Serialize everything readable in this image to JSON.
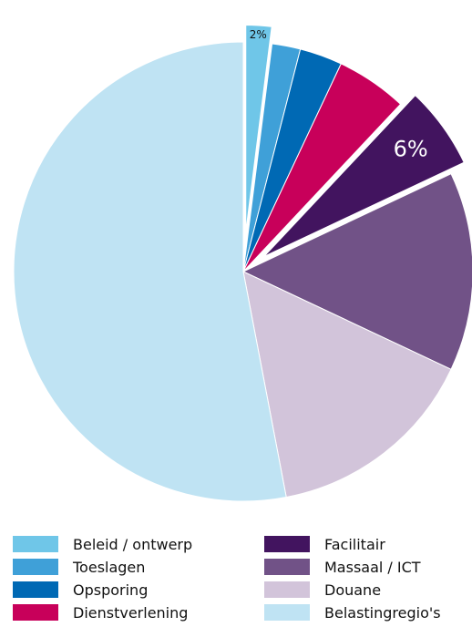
{
  "chart_data": {
    "type": "pie",
    "title": "",
    "slices": [
      {
        "name": "Beleid / ontwerp",
        "value": 2,
        "color": "#6fc6e8",
        "exploded": true,
        "label": "2%"
      },
      {
        "name": "Toeslagen",
        "value": 2,
        "color": "#3fa0d8",
        "exploded": false,
        "label": ""
      },
      {
        "name": "Opsporing",
        "value": 3,
        "color": "#0069b4",
        "exploded": false,
        "label": ""
      },
      {
        "name": "Dienstverlening",
        "value": 5,
        "color": "#c8005a",
        "exploded": false,
        "label": ""
      },
      {
        "name": "Facilitair",
        "value": 6,
        "color": "#42145f",
        "exploded": true,
        "label": "6%"
      },
      {
        "name": "Massaal / ICT",
        "value": 14,
        "color": "#715287",
        "exploded": false,
        "label": ""
      },
      {
        "name": "Douane",
        "value": 15,
        "color": "#d2c4da",
        "exploded": false,
        "label": ""
      },
      {
        "name": "Belastingregio's",
        "value": 53,
        "color": "#bfe3f3",
        "exploded": false,
        "label": ""
      }
    ],
    "legend": {
      "position": "bottom",
      "columns": [
        [
          "Beleid / ontwerp",
          "Toeslagen",
          "Opsporing",
          "Dienstverlening"
        ],
        [
          "Facilitair",
          "Massaal / ICT",
          "Douane",
          "Belastingregio's"
        ]
      ]
    }
  }
}
